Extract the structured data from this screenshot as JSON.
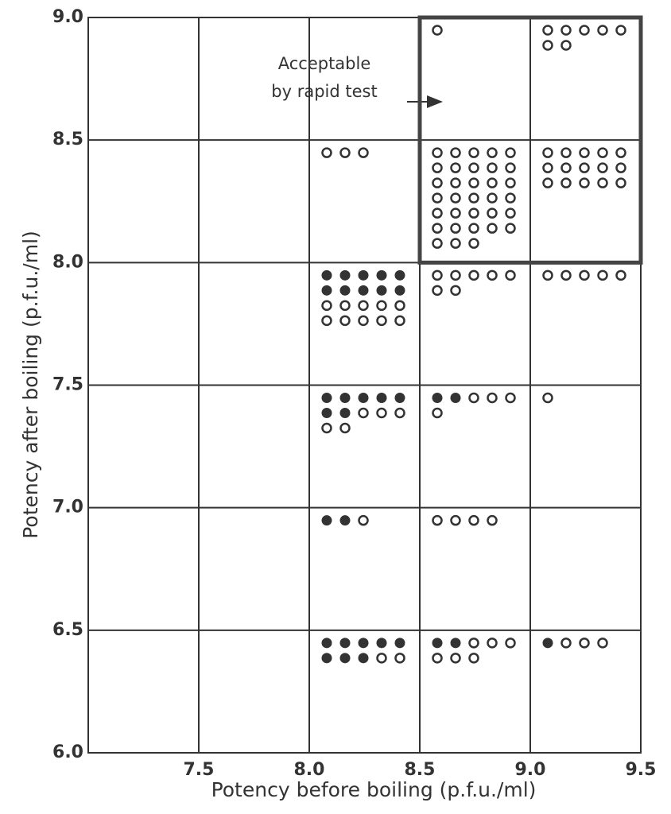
{
  "chart_data": {
    "type": "dot-grid",
    "xlabel": "Potency before boiling (p.f.u./ml)",
    "ylabel": "Potency after boiling (p.f.u./ml)",
    "xlim": [
      7.0,
      9.5
    ],
    "xticks": [
      7.5,
      {
        "value": 8,
        "label": "8.0"
      },
      8.5,
      {
        "value": 9,
        "label": "9.0"
      },
      9.5
    ],
    "ylim": [
      6.0,
      9.0
    ],
    "yticks": [
      {
        "value": 6,
        "label": "6.0"
      },
      6.5,
      {
        "value": 7,
        "label": "7.0"
      },
      7.5,
      {
        "value": 8,
        "label": "8.0"
      },
      8.5,
      {
        "value": 9,
        "label": "9.0"
      }
    ],
    "grid": true,
    "cell_size": 0.5,
    "cells": [
      {
        "x": 8.5,
        "y": 8.5,
        "filled": 0,
        "open": 1
      },
      {
        "x": 9.0,
        "y": 8.5,
        "filled": 0,
        "open": 7
      },
      {
        "x": 8.0,
        "y": 8.0,
        "filled": 0,
        "open": 3
      },
      {
        "x": 8.5,
        "y": 8.0,
        "filled": 0,
        "open": 33
      },
      {
        "x": 9.0,
        "y": 8.0,
        "filled": 0,
        "open": 15
      },
      {
        "x": 8.0,
        "y": 7.5,
        "filled": 10,
        "open": 10
      },
      {
        "x": 8.5,
        "y": 7.5,
        "filled": 0,
        "open": 7
      },
      {
        "x": 9.0,
        "y": 7.5,
        "filled": 0,
        "open": 5
      },
      {
        "x": 8.0,
        "y": 7.0,
        "filled": 7,
        "open": 5
      },
      {
        "x": 8.5,
        "y": 7.0,
        "filled": 2,
        "open": 4
      },
      {
        "x": 9.0,
        "y": 7.0,
        "filled": 0,
        "open": 1
      },
      {
        "x": 8.0,
        "y": 6.5,
        "filled": 2,
        "open": 1
      },
      {
        "x": 8.5,
        "y": 6.5,
        "filled": 0,
        "open": 4
      },
      {
        "x": 8.0,
        "y": 6.0,
        "filled": 8,
        "open": 2
      },
      {
        "x": 8.5,
        "y": 6.0,
        "filled": 2,
        "open": 6
      },
      {
        "x": 9.0,
        "y": 6.0,
        "filled": 1,
        "open": 3
      }
    ],
    "highlight": {
      "xlim": [
        8.5,
        9.5
      ],
      "ylim": [
        8.0,
        9.0
      ]
    },
    "annotation": {
      "lines": [
        "Acceptable",
        "by rapid test"
      ]
    }
  }
}
